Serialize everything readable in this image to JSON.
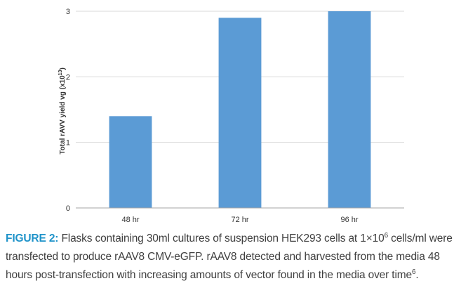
{
  "chart_data": {
    "type": "bar",
    "categories": [
      "48 hr",
      "72 hr",
      "96 hr"
    ],
    "values": [
      1.4,
      2.9,
      3.0
    ],
    "title": "",
    "xlabel": "",
    "ylabel_prefix": "Total rAVV yield vg (x10",
    "ylabel_exp": "13",
    "ylabel_suffix": ")",
    "ylim": [
      0,
      3
    ],
    "yticks": [
      "0",
      "1",
      "2",
      "3"
    ],
    "grid": true,
    "legend": "none",
    "bar_color": "#5b9bd5"
  },
  "caption": {
    "label": "FIGURE 2:",
    "part1": " Flasks containing 30ml cultures of suspension HEK293 cells at 1×10",
    "sup1": "6",
    "part2": " cells/ml were transfected to produce rAAV8 CMV-eGFP. rAAV8 detected and harvested from the media 48 hours post-transfection with increasing amounts of vector found in the media over time",
    "sup2": "6",
    "part3": "."
  }
}
